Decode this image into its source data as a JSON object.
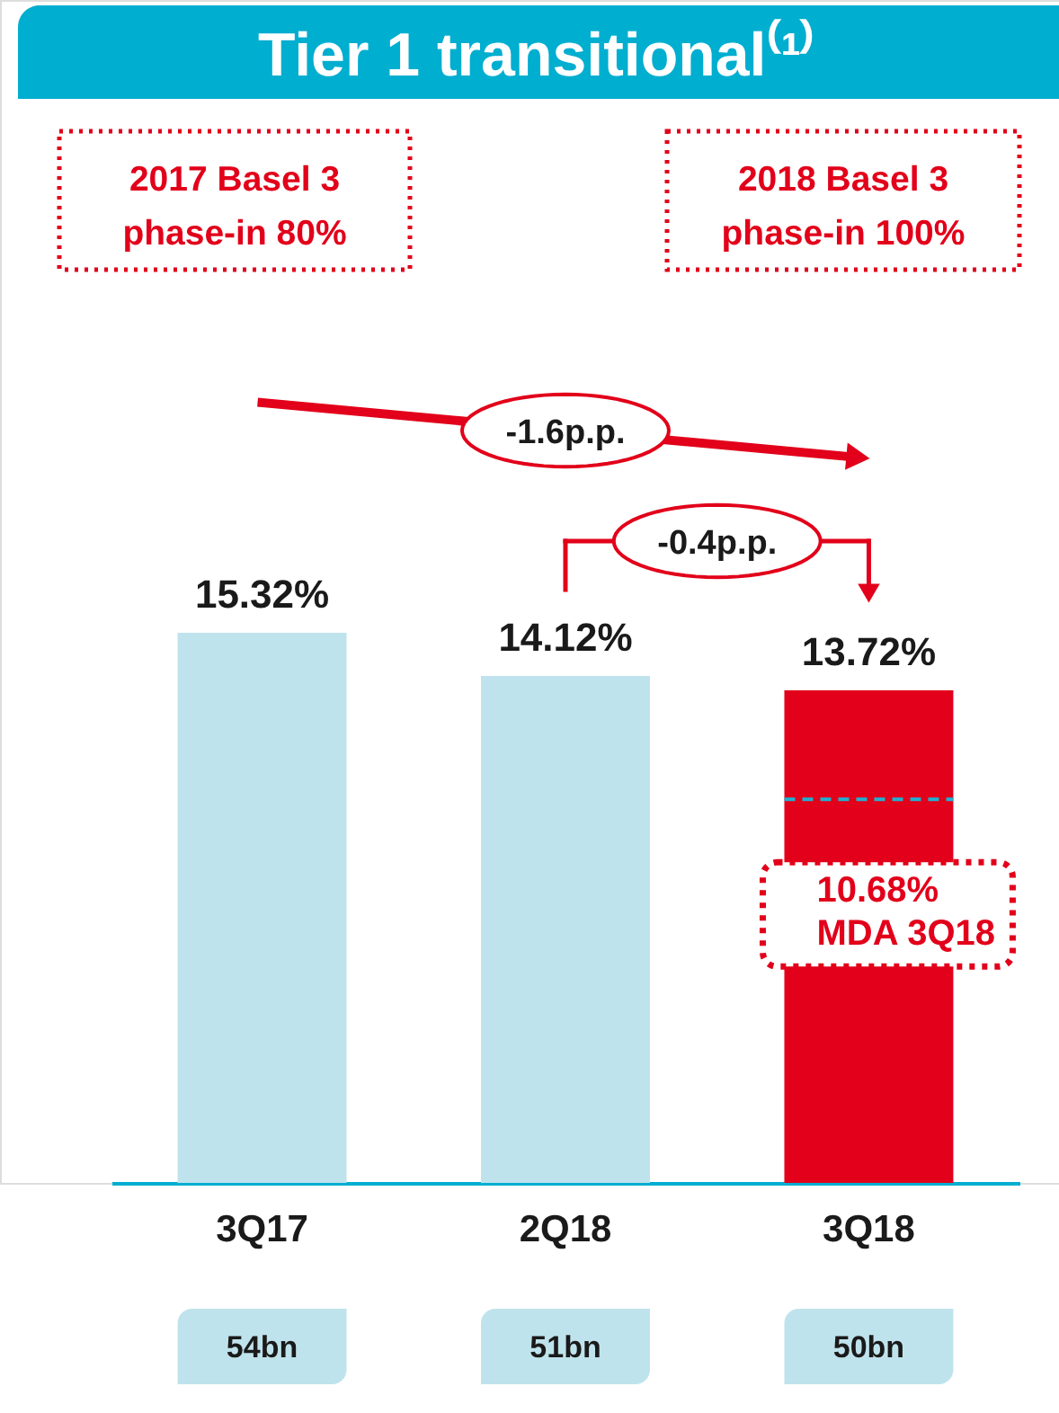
{
  "chart_data": {
    "type": "bar",
    "title": "Tier 1 transitional⁽¹⁾",
    "categories": [
      "3Q17",
      "2Q18",
      "3Q18"
    ],
    "values": [
      15.32,
      14.12,
      13.72
    ],
    "colors": [
      "#bfe3ec",
      "#bfe3ec",
      "#e2001a"
    ],
    "value_labels": [
      "15.32%",
      "14.12%",
      "13.72%"
    ],
    "ref_lines": [
      {
        "axis": "y",
        "value": 10.68,
        "label": "10.68%\nMDA 3Q18",
        "color": "#1fb1d3",
        "line_style": "dashed"
      }
    ],
    "annotations": [
      "2017 Basel 3\nphase-in 80%",
      "2018 Basel 3\nphase-in 100%",
      "-1.6p.p.",
      "-0.4p.p.",
      "54bn",
      "51bn",
      "50bn"
    ]
  }
}
